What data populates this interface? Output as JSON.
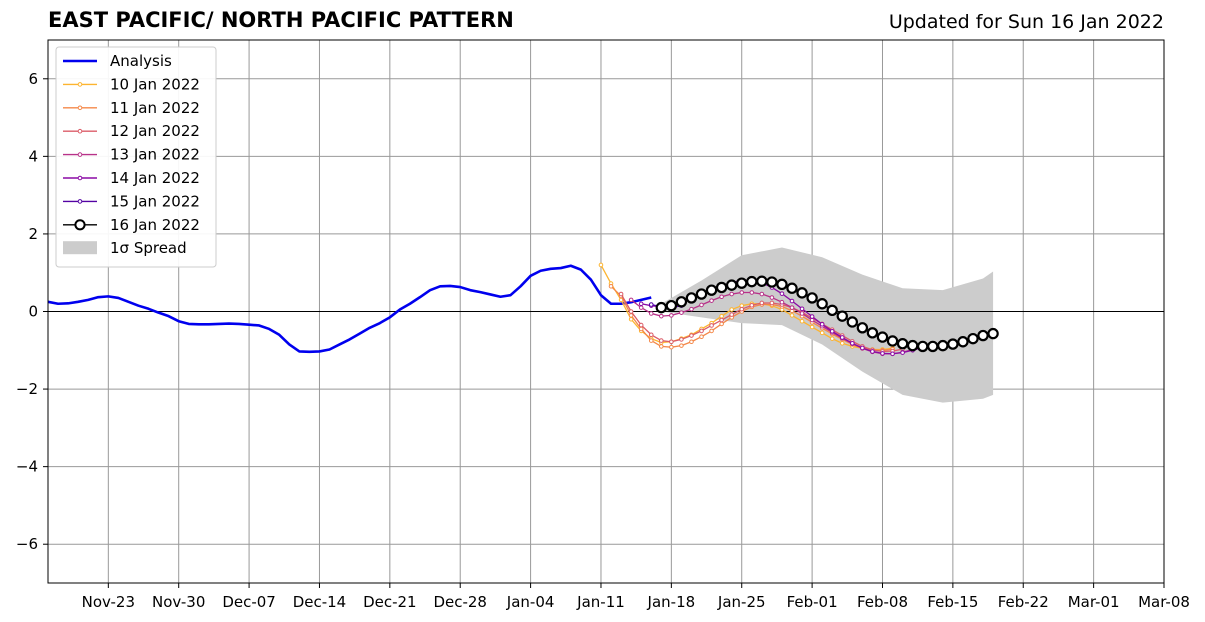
{
  "header": {
    "title": "EAST PACIFIC/ NORTH PACIFIC PATTERN",
    "updated": "Updated for Sun 16 Jan 2022"
  },
  "chart_data": {
    "type": "line",
    "title": "EAST PACIFIC/ NORTH PACIFIC PATTERN",
    "subtitle": "Updated for Sun 16 Jan 2022",
    "xlabel": "",
    "ylabel": "",
    "xlim": [
      "2021-11-17",
      "2022-03-08"
    ],
    "ylim": [
      -7,
      7
    ],
    "x_ticks": [
      "Nov-23",
      "Nov-30",
      "Dec-07",
      "Dec-14",
      "Dec-21",
      "Dec-28",
      "Jan-04",
      "Jan-11",
      "Jan-18",
      "Jan-25",
      "Feb-01",
      "Feb-08",
      "Feb-15",
      "Feb-22",
      "Mar-01",
      "Mar-08"
    ],
    "y_ticks": [
      -6,
      -4,
      -2,
      0,
      2,
      4,
      6
    ],
    "grid": true,
    "zero_line": true,
    "legend_position": "top-left",
    "series": [
      {
        "name": "Analysis",
        "color": "#0000ee",
        "x_start": "2021-11-17",
        "values": [
          0.25,
          0.2,
          0.21,
          0.25,
          0.3,
          0.37,
          0.39,
          0.35,
          0.25,
          0.15,
          0.07,
          -0.03,
          -0.12,
          -0.25,
          -0.32,
          -0.33,
          -0.33,
          -0.32,
          -0.31,
          -0.32,
          -0.34,
          -0.36,
          -0.45,
          -0.6,
          -0.85,
          -1.03,
          -1.04,
          -1.03,
          -0.98,
          -0.85,
          -0.72,
          -0.57,
          -0.42,
          -0.3,
          -0.15,
          0.05,
          0.2,
          0.37,
          0.55,
          0.65,
          0.66,
          0.63,
          0.55,
          0.5,
          0.44,
          0.38,
          0.42,
          0.65,
          0.92,
          1.05,
          1.1,
          1.12,
          1.18,
          1.08,
          0.82,
          0.42,
          0.2,
          0.2,
          0.24,
          0.3,
          0.36
        ]
      },
      {
        "name": "10 Jan 2022",
        "color": "#fdb42f",
        "x_start": "2022-01-11",
        "values": [
          1.2,
          0.72,
          0.3,
          -0.2,
          -0.5,
          -0.7,
          -0.8,
          -0.78,
          -0.7,
          -0.6,
          -0.45,
          -0.3,
          -0.12,
          0.05,
          0.15,
          0.2,
          0.2,
          0.15,
          0.05,
          -0.1,
          -0.25,
          -0.4,
          -0.55,
          -0.7,
          -0.82,
          -0.9,
          -0.95,
          -0.98,
          -0.98,
          -0.95
        ]
      },
      {
        "name": "11 Jan 2022",
        "color": "#f48849",
        "x_start": "2022-01-12",
        "values": [
          0.65,
          0.4,
          -0.1,
          -0.45,
          -0.75,
          -0.9,
          -0.92,
          -0.88,
          -0.78,
          -0.65,
          -0.5,
          -0.32,
          -0.15,
          0.0,
          0.12,
          0.18,
          0.18,
          0.13,
          0.02,
          -0.12,
          -0.28,
          -0.43,
          -0.58,
          -0.72,
          -0.85,
          -0.95,
          -1.0,
          -1.0,
          -0.97
        ]
      },
      {
        "name": "12 Jan 2022",
        "color": "#db5c68",
        "x_start": "2022-01-13",
        "values": [
          0.45,
          0.0,
          -0.35,
          -0.6,
          -0.75,
          -0.78,
          -0.72,
          -0.62,
          -0.5,
          -0.36,
          -0.22,
          -0.08,
          0.06,
          0.16,
          0.22,
          0.22,
          0.18,
          0.1,
          -0.02,
          -0.17,
          -0.32,
          -0.47,
          -0.62,
          -0.77,
          -0.9,
          -0.99,
          -1.03,
          -1.02,
          -0.97
        ]
      },
      {
        "name": "13 Jan 2022",
        "color": "#b83289",
        "x_start": "2022-01-14",
        "values": [
          0.3,
          0.1,
          -0.05,
          -0.12,
          -0.1,
          -0.03,
          0.06,
          0.17,
          0.28,
          0.38,
          0.45,
          0.49,
          0.49,
          0.45,
          0.36,
          0.24,
          0.1,
          -0.05,
          -0.22,
          -0.38,
          -0.54,
          -0.69,
          -0.83,
          -0.95,
          -1.04,
          -1.09,
          -1.09,
          -1.05,
          -0.98
        ]
      },
      {
        "name": "14 Jan 2022",
        "color": "#8b0aa5",
        "x_start": "2022-01-15",
        "values": [
          0.2,
          0.15,
          0.12,
          0.15,
          0.22,
          0.32,
          0.43,
          0.55,
          0.66,
          0.75,
          0.8,
          0.8,
          0.74,
          0.62,
          0.46,
          0.27,
          0.07,
          -0.13,
          -0.33,
          -0.51,
          -0.67,
          -0.82,
          -0.94,
          -1.03,
          -1.08,
          -1.09,
          -1.06,
          -1.0,
          -0.93
        ]
      },
      {
        "name": "15 Jan 2022",
        "color": "#5302a3",
        "x_start": "2022-01-16",
        "values": [
          0.18,
          0.12,
          0.1,
          0.15
        ]
      },
      {
        "name": "16 Jan 2022",
        "color": "#000000",
        "x_start": "2022-01-17",
        "values": [
          0.1,
          0.15,
          0.25,
          0.35,
          0.45,
          0.55,
          0.62,
          0.68,
          0.73,
          0.77,
          0.78,
          0.76,
          0.7,
          0.6,
          0.48,
          0.35,
          0.2,
          0.03,
          -0.12,
          -0.27,
          -0.42,
          -0.55,
          -0.66,
          -0.76,
          -0.83,
          -0.88,
          -0.9,
          -0.9,
          -0.88,
          -0.84,
          -0.78,
          -0.7,
          -0.62,
          -0.57
        ]
      }
    ],
    "spread": {
      "name": "1σ Spread",
      "color": "#cccccc",
      "x": [
        "2022-01-17",
        "2022-01-21",
        "2022-01-25",
        "2022-01-29",
        "2022-02-02",
        "2022-02-06",
        "2022-02-10",
        "2022-02-14",
        "2022-02-18",
        "2022-02-19"
      ],
      "upper": [
        0.2,
        0.8,
        1.45,
        1.65,
        1.4,
        0.95,
        0.6,
        0.55,
        0.85,
        1.03
      ],
      "lower": [
        0.0,
        -0.15,
        -0.3,
        -0.35,
        -0.85,
        -1.55,
        -2.15,
        -2.35,
        -2.25,
        -2.15
      ]
    }
  }
}
